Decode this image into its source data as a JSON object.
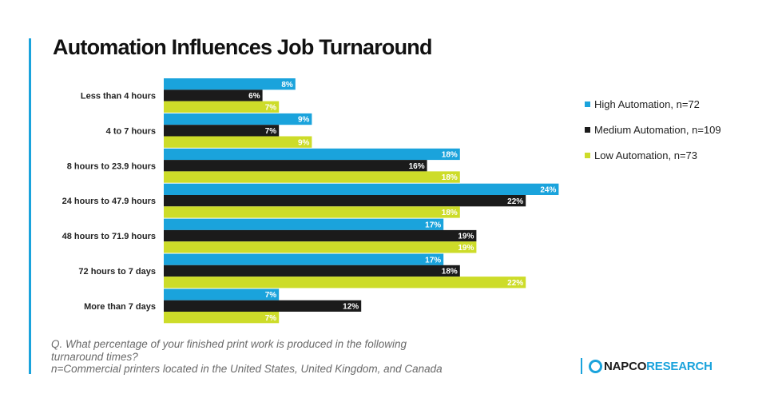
{
  "title": "Automation Influences Job Turnaround",
  "chart_data": {
    "type": "bar",
    "orientation": "horizontal",
    "categories": [
      "Less than 4 hours",
      "4 to 7 hours",
      "8 hours to 23.9 hours",
      "24 hours to 47.9 hours",
      "48 hours to 71.9 hours",
      "72 hours to 7 days",
      "More than 7 days"
    ],
    "series": [
      {
        "name": "High Automation, n=72",
        "color": "#1aa3dc",
        "values": [
          8,
          9,
          18,
          24,
          17,
          17,
          7
        ]
      },
      {
        "name": "Medium Automation, n=109",
        "color": "#1b1b1b",
        "values": [
          6,
          7,
          16,
          22,
          19,
          18,
          12
        ]
      },
      {
        "name": "Low Automation, n=73",
        "color": "#cddc29",
        "values": [
          7,
          9,
          18,
          18,
          19,
          22,
          7
        ]
      }
    ],
    "value_suffix": "%",
    "legend_position": "right",
    "grid": false
  },
  "footnote": {
    "line1": "Q. What percentage of your finished print work is produced in the following",
    "line2": "turnaround times?",
    "line3": "n=Commercial printers located in the United States, United Kingdom, and Canada"
  },
  "logo": {
    "part1": "NAPCO",
    "part2": "RESEARCH",
    "icon": "ring-logo-icon"
  }
}
